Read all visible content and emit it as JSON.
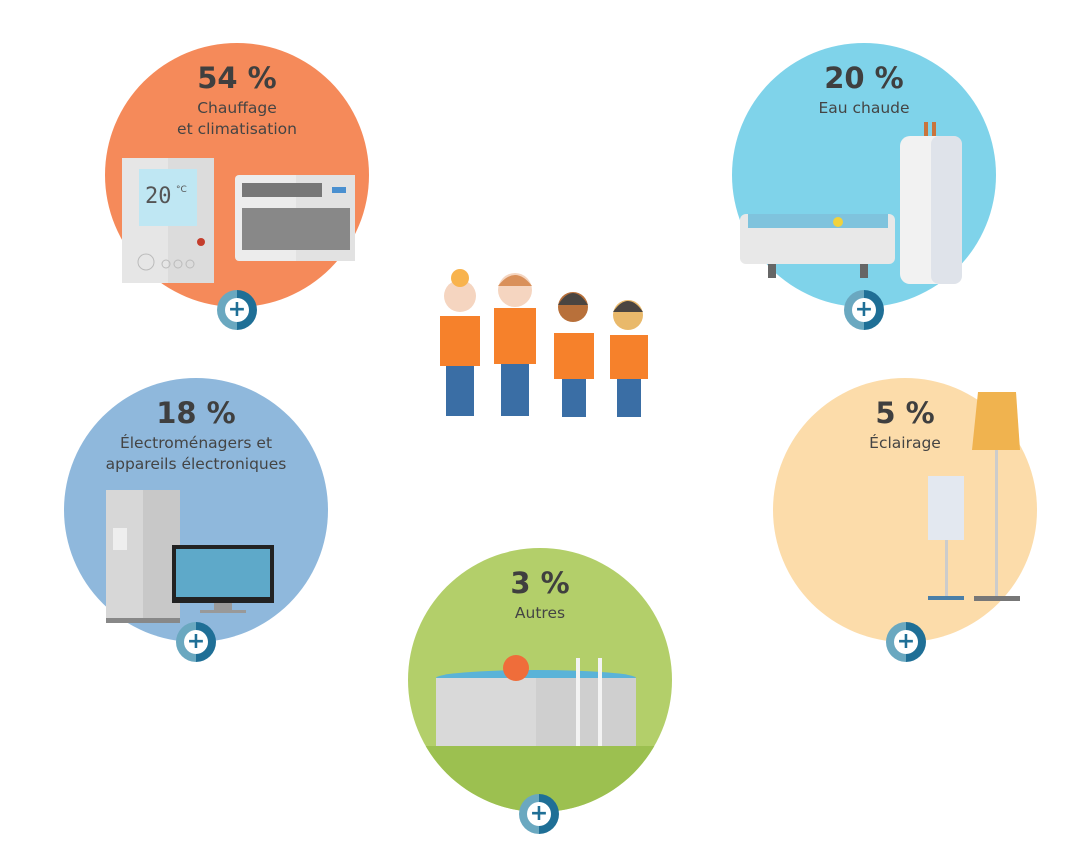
{
  "categories": [
    {
      "id": "heating",
      "percent": "54 %",
      "label_lines": [
        "Chauffage",
        "et climatisation"
      ],
      "color": "#f58a5a"
    },
    {
      "id": "hot-water",
      "percent": "20 %",
      "label_lines": [
        "Eau chaude"
      ],
      "color": "#7fd3ea"
    },
    {
      "id": "appliances",
      "percent": "18 %",
      "label_lines": [
        "Électroménagers et",
        "appareils électroniques"
      ],
      "color": "#8fb8dc"
    },
    {
      "id": "lighting",
      "percent": "5 %",
      "label_lines": [
        "Éclairage"
      ],
      "color": "#fcdcaa"
    },
    {
      "id": "other",
      "percent": "3 %",
      "label_lines": [
        "Autres"
      ],
      "color": "#b3cf6a"
    }
  ],
  "thermostat": {
    "temperature": "20",
    "unit": "°C"
  },
  "plus_icon": "+",
  "plus_colors": {
    "light": "#6aa8c0",
    "dark": "#1f6f96"
  }
}
